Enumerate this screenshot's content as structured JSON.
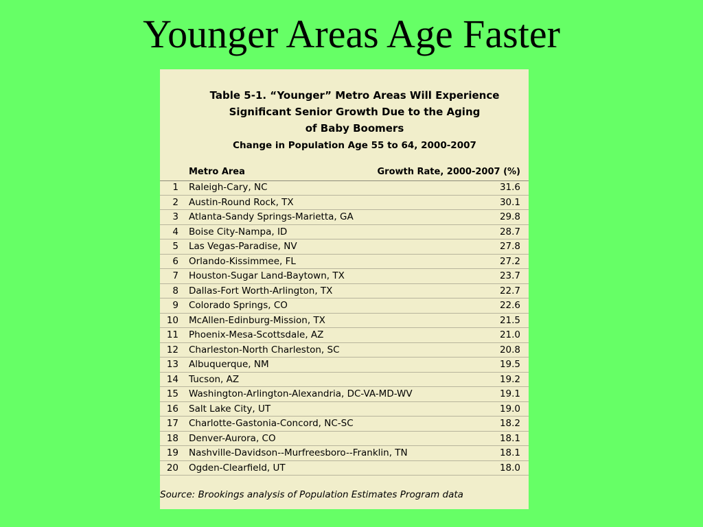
{
  "slide": {
    "title": "Younger Areas Age Faster"
  },
  "table": {
    "caption_lines": [
      "Table 5-1. “Younger” Metro Areas Will Experience",
      "Significant Senior Growth Due to the Aging",
      "of Baby Boomers"
    ],
    "subtitle": "Change in Population Age 55 to 64, 2000-2007",
    "col_metro": "Metro Area",
    "col_growth": "Growth Rate, 2000-2007 (%)",
    "rows": [
      {
        "rank": "1",
        "metro": "Raleigh-Cary, NC",
        "growth": "31.6"
      },
      {
        "rank": "2",
        "metro": "Austin-Round Rock, TX",
        "growth": "30.1"
      },
      {
        "rank": "3",
        "metro": "Atlanta-Sandy Springs-Marietta, GA",
        "growth": "29.8"
      },
      {
        "rank": "4",
        "metro": "Boise City-Nampa, ID",
        "growth": "28.7"
      },
      {
        "rank": "5",
        "metro": "Las Vegas-Paradise, NV",
        "growth": "27.8"
      },
      {
        "rank": "6",
        "metro": "Orlando-Kissimmee, FL",
        "growth": "27.2"
      },
      {
        "rank": "7",
        "metro": "Houston-Sugar Land-Baytown, TX",
        "growth": "23.7"
      },
      {
        "rank": "8",
        "metro": "Dallas-Fort Worth-Arlington, TX",
        "growth": "22.7"
      },
      {
        "rank": "9",
        "metro": "Colorado Springs, CO",
        "growth": "22.6"
      },
      {
        "rank": "10",
        "metro": "McAllen-Edinburg-Mission, TX",
        "growth": "21.5"
      },
      {
        "rank": "11",
        "metro": "Phoenix-Mesa-Scottsdale, AZ",
        "growth": "21.0"
      },
      {
        "rank": "12",
        "metro": "Charleston-North Charleston, SC",
        "growth": "20.8"
      },
      {
        "rank": "13",
        "metro": "Albuquerque, NM",
        "growth": "19.5"
      },
      {
        "rank": "14",
        "metro": "Tucson, AZ",
        "growth": "19.2"
      },
      {
        "rank": "15",
        "metro": "Washington-Arlington-Alexandria, DC-VA-MD-WV",
        "growth": "19.1"
      },
      {
        "rank": "16",
        "metro": "Salt Lake City, UT",
        "growth": "19.0"
      },
      {
        "rank": "17",
        "metro": "Charlotte-Gastonia-Concord, NC-SC",
        "growth": "18.2"
      },
      {
        "rank": "18",
        "metro": "Denver-Aurora, CO",
        "growth": "18.1"
      },
      {
        "rank": "19",
        "metro": "Nashville-Davidson--Murfreesboro--Franklin, TN",
        "growth": "18.1"
      },
      {
        "rank": "20",
        "metro": "Ogden-Clearfield, UT",
        "growth": "18.0"
      }
    ],
    "source": "Source: Brookings analysis of Population Estimates Program data"
  },
  "colors": {
    "slide_background": "#66ff66",
    "table_background": "#f1eecb"
  }
}
